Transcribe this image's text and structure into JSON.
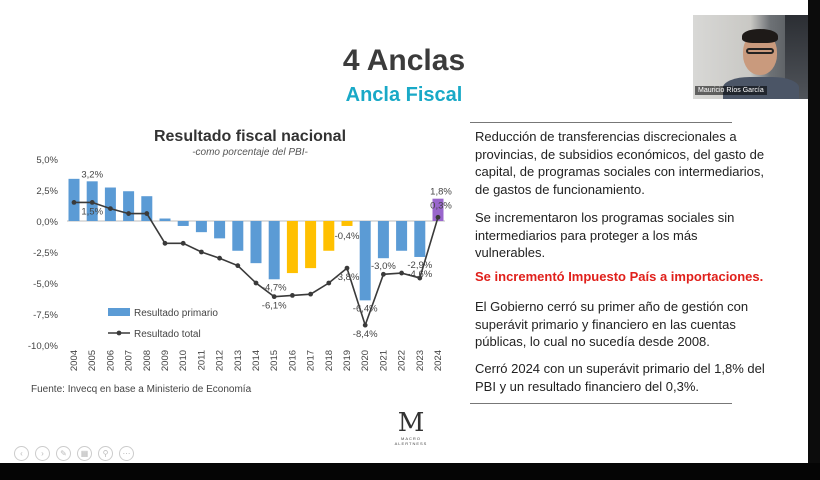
{
  "slide": {
    "title": "4 Anclas",
    "subtitle": "Ancla Fiscal",
    "source": "Fuente: Invecq en base a Ministerio de Economía",
    "logo_text": "MACRO ALERTNESS"
  },
  "colors": {
    "subtitle": "#19a9c7",
    "bar_primary": "#5b9bd5",
    "bar_highlight": "#ffc000",
    "bar_2024": "#9966cc",
    "line_total": "#3a3a3a",
    "emphasis": "#e0201b"
  },
  "chart_data": {
    "type": "bar",
    "title": "Resultado fiscal nacional",
    "subtitle": "-como porcentaje del PBI-",
    "categories": [
      "2004",
      "2005",
      "2006",
      "2007",
      "2008",
      "2009",
      "2010",
      "2011",
      "2012",
      "2013",
      "2014",
      "2015",
      "2016",
      "2017",
      "2018",
      "2019",
      "2020",
      "2021",
      "2022",
      "2023",
      "2024"
    ],
    "series": [
      {
        "name": "Resultado primario",
        "type": "bar",
        "values": [
          3.4,
          3.2,
          2.7,
          2.4,
          2.0,
          0.2,
          -0.4,
          -0.9,
          -1.4,
          -2.4,
          -3.4,
          -4.7,
          -4.2,
          -3.8,
          -2.4,
          -0.4,
          -6.4,
          -3.0,
          -2.4,
          -2.9,
          1.8
        ],
        "highlight_years": [
          "2016",
          "2017",
          "2018",
          "2019"
        ]
      },
      {
        "name": "Resultado total",
        "type": "line",
        "values": [
          1.5,
          1.5,
          1.0,
          0.6,
          0.6,
          -1.8,
          -1.8,
          -2.5,
          -3.0,
          -3.6,
          -5.0,
          -6.1,
          -6.0,
          -5.9,
          -5.0,
          -3.8,
          -8.4,
          -4.3,
          -4.2,
          -4.6,
          0.3
        ]
      }
    ],
    "data_labels": [
      {
        "year": "2005",
        "text": "3,2%",
        "series": "Resultado primario"
      },
      {
        "year": "2005",
        "text": "1,5%",
        "series": "Resultado total"
      },
      {
        "year": "2015",
        "text": "-4,7%",
        "series": "Resultado primario"
      },
      {
        "year": "2015",
        "text": "-6,1%",
        "series": "Resultado total"
      },
      {
        "year": "2019",
        "text": "-0,4%",
        "series": "Resultado primario"
      },
      {
        "year": "2019",
        "text": "-3,8%",
        "series": "Resultado total"
      },
      {
        "year": "2020",
        "text": "-6,4%",
        "series": "Resultado primario"
      },
      {
        "year": "2020",
        "text": "-8,4%",
        "series": "Resultado total"
      },
      {
        "year": "2021",
        "text": "-3,0%",
        "series": "Resultado primario"
      },
      {
        "year": "2023",
        "text": "-2,9%",
        "series": "Resultado primario"
      },
      {
        "year": "2023",
        "text": "-4,6%",
        "series": "Resultado total"
      },
      {
        "year": "2024",
        "text": "1,8%",
        "series": "Resultado primario"
      },
      {
        "year": "2024",
        "text": "0,3%",
        "series": "Resultado total"
      }
    ],
    "yticks": [
      "5,0%",
      "2,5%",
      "0,0%",
      "-2,5%",
      "-5,0%",
      "-7,5%",
      "-10,0%"
    ],
    "ytick_values": [
      5,
      2.5,
      0,
      -2.5,
      -5,
      -7.5,
      -10
    ],
    "ylim": [
      -10,
      5
    ],
    "legend": [
      "Resultado primario",
      "Resultado total"
    ],
    "legend_position": "bottom-left",
    "grid": false
  },
  "text": {
    "p1": "Reducción de transferencias discrecionales a provincias, de subsidios económicos, del gasto de capital, de programas sociales con intermediarios, de gastos de funcionamiento.",
    "p2": "Se incrementaron los programas sociales sin intermediarios para proteger a los más vulnerables.",
    "p3": "Se incrementó Impuesto País a importaciones.",
    "p4": "El Gobierno cerró su primer año de gestión con superávit primario y financiero en las cuentas públicas, lo cual no sucedía desde 2008.",
    "p5": "Cerró 2024 con un superávit primario del 1,8% del PBI y un resultado financiero del 0,3%."
  },
  "webcam": {
    "participant_name": "Mauricio Ríos García"
  },
  "toolbar": {
    "prev_icon": "arrow-left-icon",
    "next_icon": "arrow-right-icon",
    "pen_icon": "pen-icon",
    "slides_icon": "slides-icon",
    "zoom_icon": "zoom-icon",
    "more_icon": "more-icon"
  }
}
